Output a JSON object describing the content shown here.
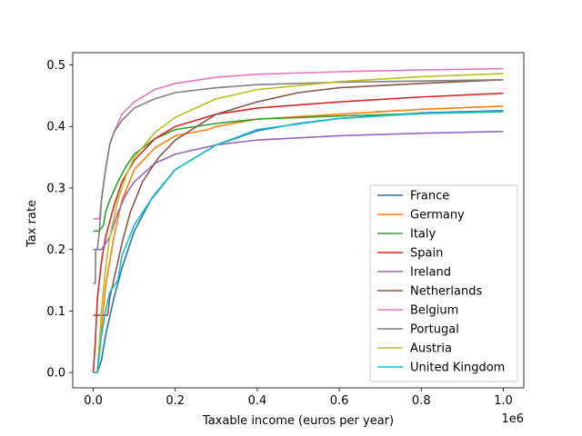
{
  "chart_data": {
    "type": "line",
    "xlabel": "Taxable income (euros per year)",
    "ylabel": "Tax rate",
    "x_offset_label": "1e6",
    "xlim": [
      -0.05,
      1.05
    ],
    "ylim": [
      -0.025,
      0.52
    ],
    "x_ticks": [
      0.0,
      0.2,
      0.4,
      0.6,
      0.8,
      1.0
    ],
    "x_tick_labels": [
      "0.0",
      "0.2",
      "0.4",
      "0.6",
      "0.8",
      "1.0"
    ],
    "y_ticks": [
      0.0,
      0.1,
      0.2,
      0.3,
      0.4,
      0.5
    ],
    "y_tick_labels": [
      "0.0",
      "0.1",
      "0.2",
      "0.3",
      "0.4",
      "0.5"
    ],
    "grid": false,
    "legend_position": "lower right",
    "series": [
      {
        "name": "France",
        "color": "#1f77b4",
        "points": [
          [
            0,
            0
          ],
          [
            0.01,
            0
          ],
          [
            0.02,
            0.02
          ],
          [
            0.03,
            0.06
          ],
          [
            0.05,
            0.12
          ],
          [
            0.07,
            0.17
          ],
          [
            0.1,
            0.23
          ],
          [
            0.14,
            0.28
          ],
          [
            0.2,
            0.33
          ],
          [
            0.3,
            0.37
          ],
          [
            0.4,
            0.393
          ],
          [
            0.5,
            0.405
          ],
          [
            0.6,
            0.413
          ],
          [
            0.8,
            0.422
          ],
          [
            1.0,
            0.426
          ]
        ]
      },
      {
        "name": "Germany",
        "color": "#ff7f0e",
        "points": [
          [
            0,
            0
          ],
          [
            0.01,
            0
          ],
          [
            0.015,
            0.03
          ],
          [
            0.02,
            0.07
          ],
          [
            0.03,
            0.14
          ],
          [
            0.05,
            0.22
          ],
          [
            0.07,
            0.28
          ],
          [
            0.1,
            0.33
          ],
          [
            0.15,
            0.365
          ],
          [
            0.2,
            0.385
          ],
          [
            0.28,
            0.395
          ],
          [
            0.3,
            0.4
          ],
          [
            0.4,
            0.412
          ],
          [
            0.6,
            0.42
          ],
          [
            0.8,
            0.428
          ],
          [
            1.0,
            0.433
          ]
        ]
      },
      {
        "name": "Italy",
        "color": "#2ca02c",
        "points": [
          [
            0,
            0.23
          ],
          [
            0.01,
            0.23
          ],
          [
            0.015,
            0.23
          ],
          [
            0.025,
            0.24
          ],
          [
            0.03,
            0.26
          ],
          [
            0.04,
            0.28
          ],
          [
            0.06,
            0.31
          ],
          [
            0.08,
            0.335
          ],
          [
            0.1,
            0.355
          ],
          [
            0.15,
            0.38
          ],
          [
            0.2,
            0.395
          ],
          [
            0.3,
            0.405
          ],
          [
            0.4,
            0.412
          ],
          [
            0.6,
            0.417
          ],
          [
            0.8,
            0.421
          ],
          [
            1.0,
            0.424
          ]
        ]
      },
      {
        "name": "Spain",
        "color": "#d62728",
        "points": [
          [
            0,
            0
          ],
          [
            0.005,
            0.05
          ],
          [
            0.01,
            0.12
          ],
          [
            0.02,
            0.18
          ],
          [
            0.03,
            0.22
          ],
          [
            0.05,
            0.27
          ],
          [
            0.07,
            0.31
          ],
          [
            0.1,
            0.345
          ],
          [
            0.15,
            0.38
          ],
          [
            0.2,
            0.4
          ],
          [
            0.3,
            0.42
          ],
          [
            0.4,
            0.43
          ],
          [
            0.6,
            0.44
          ],
          [
            0.8,
            0.448
          ],
          [
            1.0,
            0.454
          ]
        ]
      },
      {
        "name": "Ireland",
        "color": "#9467bd",
        "points": [
          [
            0,
            0.2
          ],
          [
            0.01,
            0.2
          ],
          [
            0.02,
            0.2
          ],
          [
            0.03,
            0.21
          ],
          [
            0.04,
            0.22
          ],
          [
            0.06,
            0.26
          ],
          [
            0.08,
            0.29
          ],
          [
            0.1,
            0.31
          ],
          [
            0.15,
            0.34
          ],
          [
            0.2,
            0.355
          ],
          [
            0.3,
            0.37
          ],
          [
            0.4,
            0.378
          ],
          [
            0.6,
            0.385
          ],
          [
            0.8,
            0.389
          ],
          [
            1.0,
            0.392
          ]
        ]
      },
      {
        "name": "Netherlands",
        "color": "#8c564b",
        "points": [
          [
            0,
            0.093
          ],
          [
            0.02,
            0.093
          ],
          [
            0.035,
            0.093
          ],
          [
            0.04,
            0.12
          ],
          [
            0.05,
            0.15
          ],
          [
            0.07,
            0.21
          ],
          [
            0.09,
            0.26
          ],
          [
            0.12,
            0.31
          ],
          [
            0.16,
            0.35
          ],
          [
            0.2,
            0.378
          ],
          [
            0.3,
            0.42
          ],
          [
            0.4,
            0.44
          ],
          [
            0.5,
            0.455
          ],
          [
            0.6,
            0.463
          ],
          [
            0.8,
            0.47
          ],
          [
            1.0,
            0.476
          ]
        ]
      },
      {
        "name": "Belgium",
        "color": "#e377c2",
        "points": [
          [
            0,
            0.25
          ],
          [
            0.01,
            0.25
          ],
          [
            0.015,
            0.25
          ],
          [
            0.02,
            0.28
          ],
          [
            0.03,
            0.33
          ],
          [
            0.04,
            0.37
          ],
          [
            0.05,
            0.39
          ],
          [
            0.07,
            0.42
          ],
          [
            0.1,
            0.44
          ],
          [
            0.15,
            0.46
          ],
          [
            0.2,
            0.47
          ],
          [
            0.3,
            0.48
          ],
          [
            0.4,
            0.485
          ],
          [
            0.6,
            0.489
          ],
          [
            0.8,
            0.492
          ],
          [
            1.0,
            0.494
          ]
        ]
      },
      {
        "name": "Portugal",
        "color": "#7f7f7f",
        "points": [
          [
            0,
            0.145
          ],
          [
            0.005,
            0.145
          ],
          [
            0.006,
            0.2
          ],
          [
            0.01,
            0.2
          ],
          [
            0.015,
            0.23
          ],
          [
            0.02,
            0.28
          ],
          [
            0.03,
            0.33
          ],
          [
            0.04,
            0.37
          ],
          [
            0.05,
            0.39
          ],
          [
            0.07,
            0.41
          ],
          [
            0.1,
            0.43
          ],
          [
            0.15,
            0.445
          ],
          [
            0.2,
            0.455
          ],
          [
            0.3,
            0.463
          ],
          [
            0.4,
            0.468
          ],
          [
            0.6,
            0.472
          ],
          [
            0.8,
            0.474
          ],
          [
            1.0,
            0.476
          ]
        ]
      },
      {
        "name": "Austria",
        "color": "#bcbd22",
        "points": [
          [
            0,
            0
          ],
          [
            0.01,
            0
          ],
          [
            0.015,
            0.05
          ],
          [
            0.02,
            0.1
          ],
          [
            0.03,
            0.17
          ],
          [
            0.04,
            0.22
          ],
          [
            0.06,
            0.28
          ],
          [
            0.08,
            0.32
          ],
          [
            0.1,
            0.35
          ],
          [
            0.15,
            0.39
          ],
          [
            0.2,
            0.415
          ],
          [
            0.3,
            0.445
          ],
          [
            0.4,
            0.46
          ],
          [
            0.6,
            0.473
          ],
          [
            0.8,
            0.481
          ],
          [
            1.0,
            0.486
          ]
        ]
      },
      {
        "name": "United Kingdom",
        "color": "#17becf",
        "points": [
          [
            0,
            0
          ],
          [
            0.01,
            0
          ],
          [
            0.015,
            0.03
          ],
          [
            0.02,
            0.06
          ],
          [
            0.03,
            0.1
          ],
          [
            0.04,
            0.13
          ],
          [
            0.06,
            0.15
          ],
          [
            0.07,
            0.19
          ],
          [
            0.1,
            0.24
          ],
          [
            0.15,
            0.29
          ],
          [
            0.2,
            0.33
          ],
          [
            0.3,
            0.37
          ],
          [
            0.4,
            0.395
          ],
          [
            0.6,
            0.413
          ],
          [
            0.8,
            0.421
          ],
          [
            1.0,
            0.425
          ]
        ]
      }
    ]
  }
}
